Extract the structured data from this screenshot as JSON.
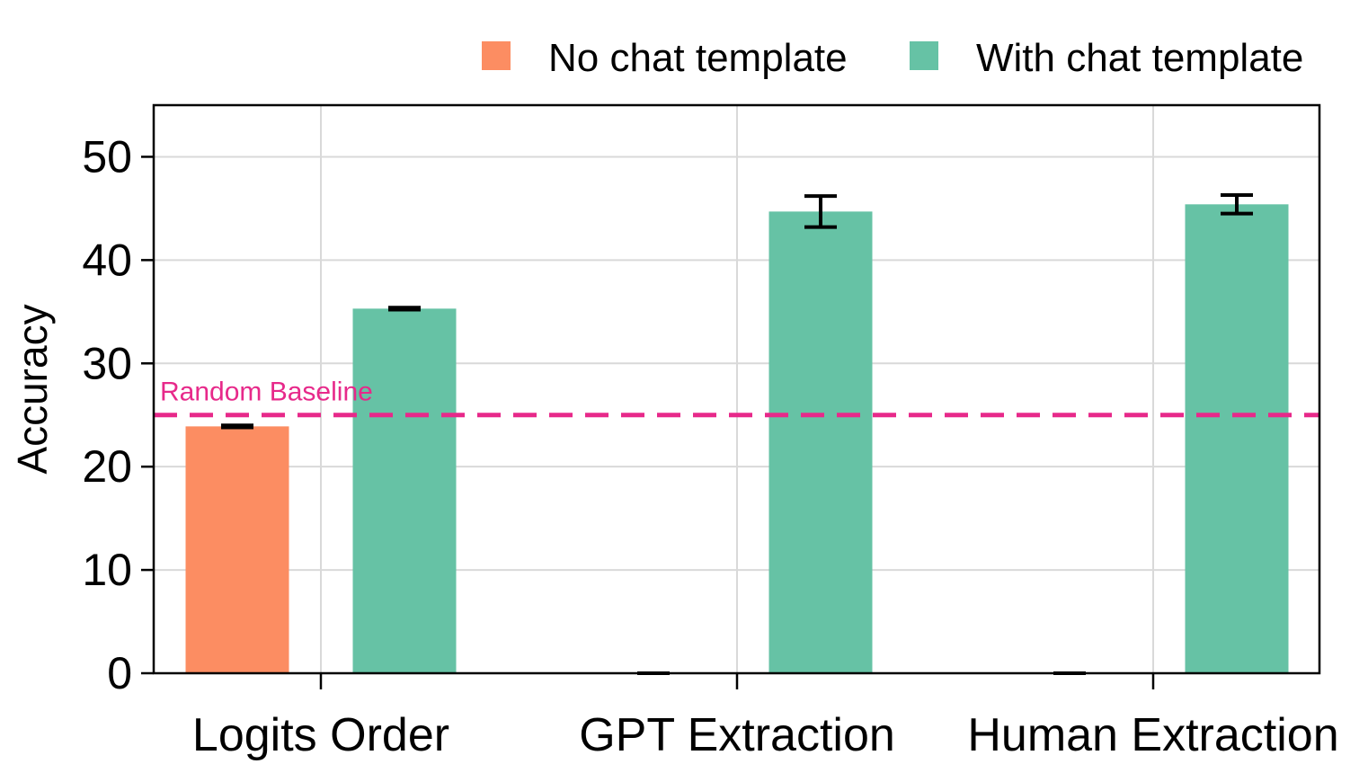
{
  "chart_data": {
    "type": "bar",
    "ylabel": "Accuracy",
    "ylim": [
      0,
      55
    ],
    "yticks": [
      0,
      10,
      20,
      30,
      40,
      50
    ],
    "categories": [
      "Logits Order",
      "GPT Extraction",
      "Human Extraction"
    ],
    "series": [
      {
        "name": "No chat template",
        "color": "#fc8d62",
        "values": [
          23.9,
          0,
          0
        ],
        "errors": [
          0.1,
          0,
          0
        ]
      },
      {
        "name": "With chat template",
        "color": "#66c2a5",
        "values": [
          35.3,
          44.7,
          45.4
        ],
        "errors": [
          0.1,
          1.5,
          0.9
        ]
      }
    ],
    "baseline": {
      "label": "Random Baseline",
      "value": 25,
      "color": "#e7298a"
    },
    "grid": true,
    "legend_position": "top-right"
  }
}
